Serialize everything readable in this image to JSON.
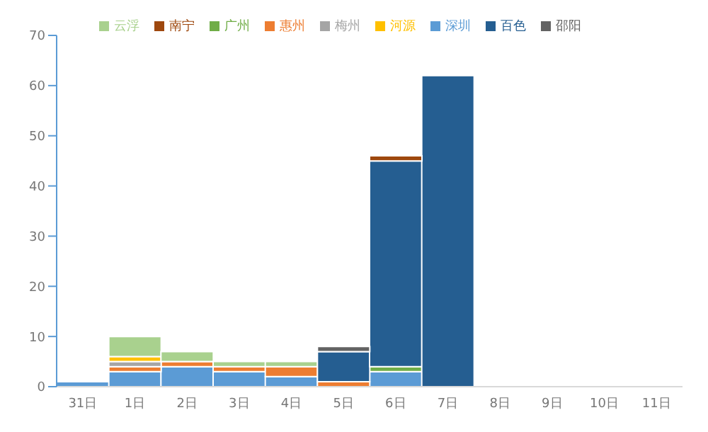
{
  "chart_data": {
    "type": "bar",
    "stacked": true,
    "categories": [
      "31日",
      "1日",
      "2日",
      "3日",
      "4日",
      "5日",
      "6日",
      "7日",
      "8日",
      "9日",
      "10日",
      "11日"
    ],
    "series": [
      {
        "name": "深圳",
        "color": "#5b9bd5",
        "values": [
          1,
          3,
          4,
          3,
          2,
          null,
          3,
          null,
          null,
          null,
          null,
          null
        ]
      },
      {
        "name": "惠州",
        "color": "#ed7d31",
        "values": [
          null,
          1,
          1,
          1,
          2,
          1,
          null,
          null,
          null,
          null,
          null,
          null
        ]
      },
      {
        "name": "梅州",
        "color": "#a5a5a5",
        "values": [
          null,
          1,
          null,
          null,
          null,
          null,
          null,
          null,
          null,
          null,
          null,
          null
        ]
      },
      {
        "name": "河源",
        "color": "#ffc000",
        "values": [
          null,
          1,
          null,
          null,
          null,
          null,
          null,
          null,
          null,
          null,
          null,
          null
        ]
      },
      {
        "name": "云浮",
        "color": "#a9d18e",
        "values": [
          null,
          4,
          2,
          1,
          1,
          null,
          null,
          null,
          null,
          null,
          null,
          null
        ]
      },
      {
        "name": "广州",
        "color": "#70ad47",
        "values": [
          null,
          null,
          null,
          null,
          null,
          null,
          1,
          null,
          null,
          null,
          null,
          null
        ]
      },
      {
        "name": "百色",
        "color": "#255e91",
        "values": [
          null,
          null,
          null,
          null,
          null,
          6,
          41,
          62,
          null,
          null,
          null,
          null
        ]
      },
      {
        "name": "南宁",
        "color": "#9e480e",
        "values": [
          null,
          null,
          null,
          null,
          null,
          null,
          1,
          null,
          null,
          null,
          null,
          null
        ]
      },
      {
        "name": "邵阳",
        "color": "#636363",
        "values": [
          null,
          null,
          null,
          null,
          null,
          1,
          null,
          null,
          null,
          null,
          null,
          null
        ]
      }
    ],
    "ylim": [
      0,
      70
    ],
    "yticks": [
      0,
      10,
      20,
      30,
      40,
      50,
      60,
      70
    ],
    "grid": false,
    "legend": "top"
  }
}
